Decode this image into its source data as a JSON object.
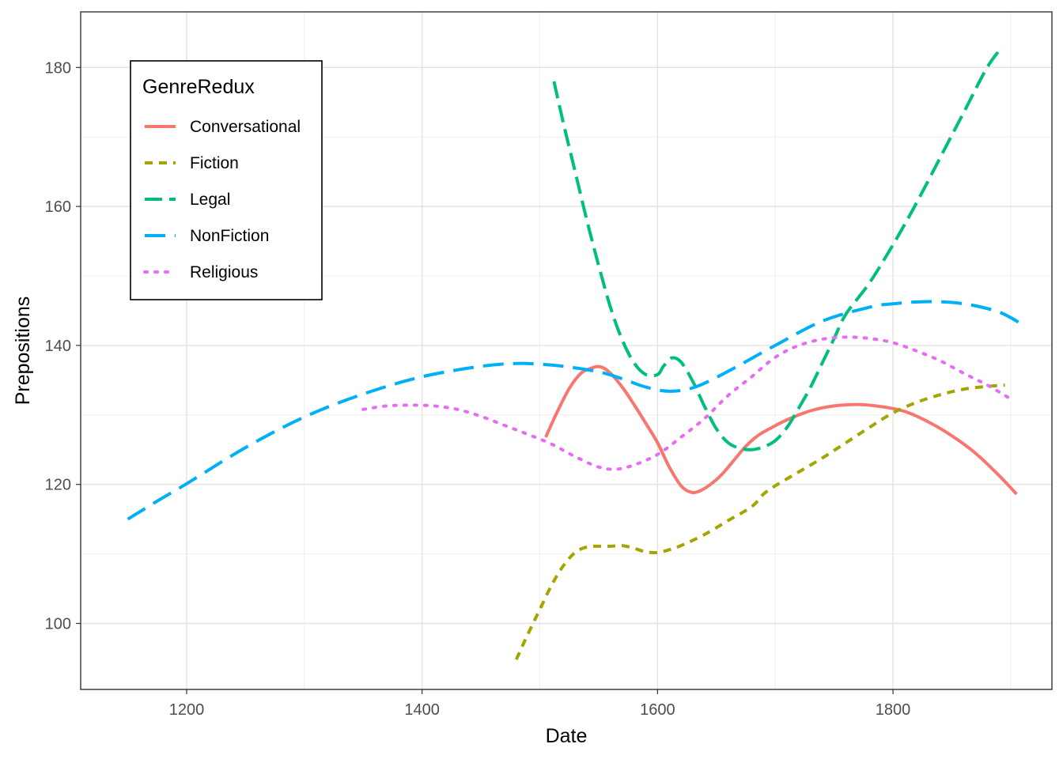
{
  "chart_data": {
    "type": "line",
    "title": "",
    "xlabel": "Date",
    "ylabel": "Prepositions",
    "xlim": [
      1110,
      1935
    ],
    "ylim": [
      90.5,
      188
    ],
    "x_ticks": [
      1200,
      1400,
      1600,
      1800
    ],
    "y_ticks": [
      100,
      120,
      140,
      160,
      180
    ],
    "grid": true,
    "theme": "bw",
    "legend": {
      "title": "GenreRedux",
      "position": "top-left"
    },
    "series": [
      {
        "name": "Conversational",
        "color": "#F8766D",
        "linetype": "solid",
        "x": [
          1505,
          1515,
          1525,
          1535,
          1545,
          1552,
          1560,
          1570,
          1580,
          1590,
          1600,
          1610,
          1620,
          1628,
          1635,
          1645,
          1655,
          1665,
          1675,
          1685,
          1695,
          1710,
          1730,
          1750,
          1770,
          1790,
          1810,
          1830,
          1850,
          1870,
          1890,
          1905
        ],
        "y": [
          126.8,
          130.5,
          133.8,
          136.0,
          136.8,
          136.9,
          136.0,
          134.0,
          131.5,
          128.8,
          126.0,
          122.5,
          119.8,
          118.9,
          119.0,
          120.0,
          121.5,
          123.5,
          125.5,
          127.0,
          128.0,
          129.3,
          130.6,
          131.3,
          131.5,
          131.2,
          130.5,
          129.0,
          127.0,
          124.5,
          121.3,
          118.6
        ]
      },
      {
        "name": "Fiction",
        "color": "#A3A500",
        "linetype": "dashed",
        "x": [
          1480,
          1490,
          1500,
          1510,
          1520,
          1530,
          1540,
          1550,
          1560,
          1570,
          1580,
          1590,
          1600,
          1610,
          1620,
          1640,
          1660,
          1680,
          1690,
          1700,
          1720,
          1740,
          1760,
          1780,
          1800,
          1820,
          1840,
          1860,
          1880,
          1895
        ],
        "y": [
          94.8,
          98.5,
          102.0,
          105.5,
          108.3,
          110.2,
          111.0,
          111.1,
          111.1,
          111.2,
          110.8,
          110.3,
          110.2,
          110.6,
          111.2,
          112.8,
          114.8,
          116.8,
          118.6,
          119.8,
          121.8,
          123.8,
          126.0,
          128.2,
          130.3,
          131.8,
          132.9,
          133.7,
          134.1,
          134.3
        ]
      },
      {
        "name": "Legal",
        "color": "#00BF7D",
        "linetype": "longdash",
        "x": [
          1512,
          1520,
          1530,
          1540,
          1550,
          1560,
          1570,
          1580,
          1590,
          1600,
          1605,
          1612,
          1620,
          1630,
          1640,
          1650,
          1660,
          1670,
          1680,
          1690,
          1700,
          1710,
          1720,
          1730,
          1740,
          1750,
          1760,
          1780,
          1800,
          1820,
          1840,
          1860,
          1880,
          1893
        ],
        "y": [
          178.0,
          172.0,
          165.0,
          158.0,
          151.5,
          145.5,
          140.8,
          137.5,
          135.8,
          135.8,
          137.0,
          138.2,
          137.6,
          134.8,
          131.2,
          128.0,
          126.0,
          125.2,
          125.0,
          125.4,
          126.3,
          128.2,
          131.0,
          134.0,
          137.5,
          141.0,
          144.5,
          149.0,
          154.5,
          160.5,
          167.0,
          173.5,
          180.0,
          183.0
        ]
      },
      {
        "name": "NonFiction",
        "color": "#00B0F6",
        "linetype": "longerdash",
        "x": [
          1150,
          1175,
          1200,
          1250,
          1300,
          1350,
          1400,
          1450,
          1480,
          1500,
          1520,
          1550,
          1570,
          1590,
          1610,
          1630,
          1650,
          1670,
          1700,
          1740,
          1780,
          1800,
          1830,
          1860,
          1890,
          1910
        ],
        "y": [
          115.0,
          117.6,
          120.1,
          125.3,
          129.7,
          133.0,
          135.5,
          137.0,
          137.4,
          137.3,
          137.0,
          136.2,
          135.2,
          134.0,
          133.4,
          133.9,
          135.4,
          137.2,
          140.0,
          143.5,
          145.5,
          146.0,
          146.3,
          146.0,
          144.8,
          143.0
        ]
      },
      {
        "name": "Religious",
        "color": "#E76BF3",
        "linetype": "dotted",
        "x": [
          1350,
          1370,
          1390,
          1410,
          1430,
          1450,
          1470,
          1490,
          1510,
          1530,
          1550,
          1565,
          1580,
          1600,
          1620,
          1640,
          1660,
          1680,
          1700,
          1720,
          1740,
          1760,
          1780,
          1800,
          1820,
          1840,
          1860,
          1880,
          1900
        ],
        "y": [
          130.8,
          131.3,
          131.4,
          131.3,
          130.8,
          129.8,
          128.5,
          127.2,
          125.8,
          124.0,
          122.5,
          122.2,
          122.8,
          124.3,
          126.8,
          129.5,
          132.8,
          135.5,
          138.3,
          140.0,
          140.9,
          141.2,
          141.0,
          140.4,
          139.2,
          137.8,
          136.0,
          134.3,
          132.3
        ]
      }
    ]
  }
}
